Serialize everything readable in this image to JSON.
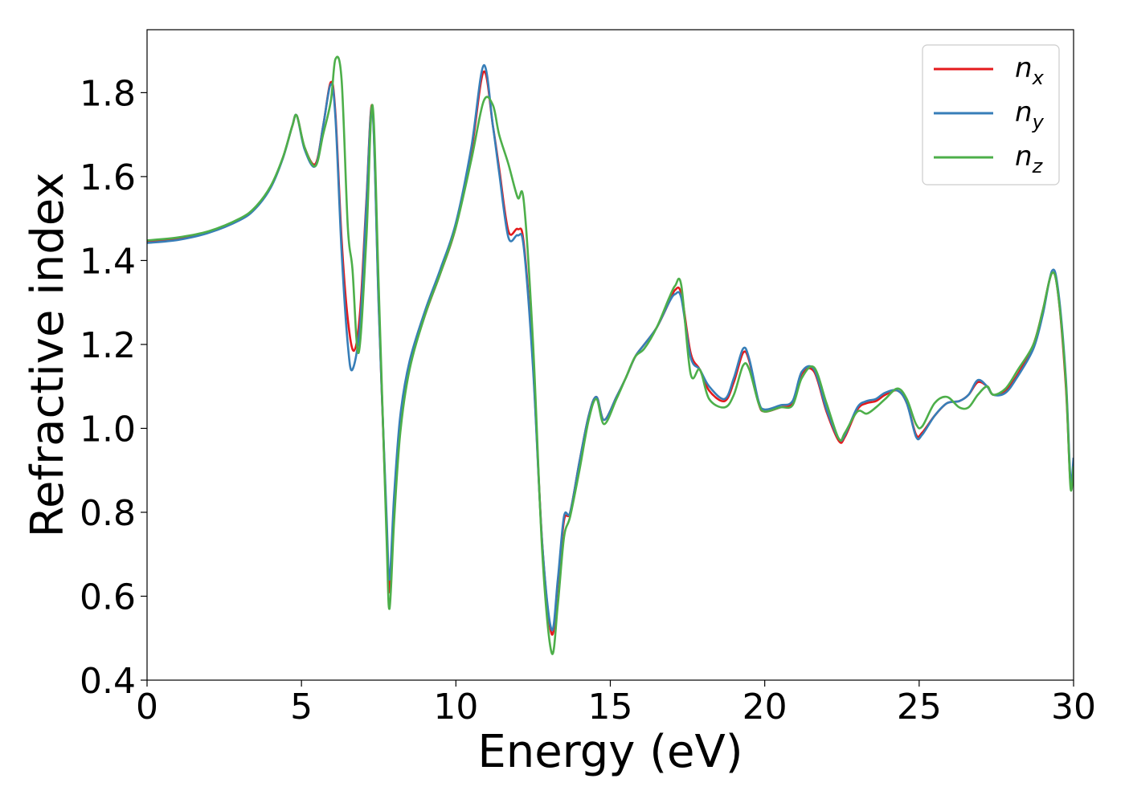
{
  "chart_data": {
    "type": "line",
    "title": "",
    "xlabel": "Energy (eV)",
    "ylabel": "Refractive index",
    "xlim": [
      0,
      30
    ],
    "ylim": [
      0.4,
      1.95
    ],
    "xticks": [
      0,
      5,
      10,
      15,
      20,
      25,
      30
    ],
    "xtick_labels": [
      "0",
      "5",
      "10",
      "15",
      "20",
      "25",
      "30"
    ],
    "yticks": [
      0.4,
      0.6,
      0.8,
      1.0,
      1.2,
      1.4,
      1.6,
      1.8
    ],
    "ytick_labels": [
      "0.4",
      "0.6",
      "0.8",
      "1.0",
      "1.2",
      "1.4",
      "1.6",
      "1.8"
    ],
    "grid": false,
    "legend_position": "top-right",
    "series": [
      {
        "name": "n",
        "subscript": "x",
        "color": "#e41a1c",
        "x": [
          0,
          1,
          2,
          3,
          3.5,
          4,
          4.4,
          4.7,
          4.85,
          5.1,
          5.45,
          5.7,
          5.95,
          6.1,
          6.3,
          6.5,
          6.7,
          6.9,
          7.1,
          7.3,
          7.5,
          7.75,
          7.85,
          8,
          8.2,
          8.5,
          9,
          9.5,
          10,
          10.5,
          10.9,
          11.2,
          11.4,
          11.7,
          12.0,
          12.2,
          12.5,
          12.8,
          13.1,
          13.3,
          13.5,
          13.7,
          14.0,
          14.3,
          14.55,
          14.8,
          15.2,
          15.5,
          15.8,
          16.1,
          16.5,
          16.9,
          17.1,
          17.3,
          17.6,
          17.9,
          18.2,
          18.7,
          19.0,
          19.3,
          19.5,
          19.8,
          20.0,
          20.5,
          20.9,
          21.2,
          21.6,
          22.0,
          22.4,
          22.6,
          23.0,
          23.3,
          23.6,
          23.9,
          24.3,
          24.6,
          24.9,
          25.1,
          25.5,
          25.9,
          26.3,
          26.6,
          26.9,
          27.2,
          27.4,
          27.8,
          28.2,
          28.7,
          29.0,
          29.3,
          29.5,
          29.75,
          29.9,
          30
        ],
        "y": [
          1.445,
          1.452,
          1.468,
          1.498,
          1.525,
          1.575,
          1.645,
          1.72,
          1.745,
          1.67,
          1.63,
          1.72,
          1.825,
          1.75,
          1.45,
          1.26,
          1.185,
          1.28,
          1.54,
          1.765,
          1.3,
          0.78,
          0.61,
          0.82,
          1.02,
          1.15,
          1.27,
          1.37,
          1.48,
          1.66,
          1.85,
          1.72,
          1.62,
          1.47,
          1.475,
          1.44,
          1.15,
          0.72,
          0.51,
          0.63,
          0.78,
          0.8,
          0.92,
          1.03,
          1.075,
          1.02,
          1.075,
          1.12,
          1.17,
          1.2,
          1.24,
          1.3,
          1.33,
          1.32,
          1.18,
          1.14,
          1.09,
          1.065,
          1.11,
          1.18,
          1.16,
          1.06,
          1.04,
          1.05,
          1.06,
          1.13,
          1.135,
          1.04,
          0.97,
          0.98,
          1.045,
          1.06,
          1.065,
          1.08,
          1.09,
          1.06,
          0.985,
          0.99,
          1.03,
          1.06,
          1.065,
          1.08,
          1.11,
          1.1,
          1.08,
          1.09,
          1.13,
          1.2,
          1.28,
          1.37,
          1.32,
          1.1,
          0.87,
          0.92
        ]
      },
      {
        "name": "n",
        "subscript": "y",
        "color": "#377eb8",
        "x": [
          0,
          1,
          2,
          3,
          3.5,
          4,
          4.4,
          4.7,
          4.85,
          5.1,
          5.45,
          5.7,
          5.95,
          6.1,
          6.3,
          6.5,
          6.65,
          6.9,
          7.1,
          7.3,
          7.5,
          7.75,
          7.85,
          8,
          8.2,
          8.5,
          9,
          9.5,
          10,
          10.5,
          10.9,
          11.2,
          11.4,
          11.7,
          12.0,
          12.2,
          12.5,
          12.8,
          13.1,
          13.3,
          13.5,
          13.7,
          14.0,
          14.3,
          14.55,
          14.8,
          15.2,
          15.5,
          15.8,
          16.1,
          16.5,
          16.9,
          17.1,
          17.3,
          17.6,
          17.9,
          18.2,
          18.7,
          19.0,
          19.3,
          19.5,
          19.8,
          20.0,
          20.5,
          20.9,
          21.2,
          21.6,
          22.0,
          22.4,
          22.6,
          23.0,
          23.3,
          23.6,
          23.9,
          24.3,
          24.6,
          24.9,
          25.1,
          25.5,
          25.9,
          26.3,
          26.6,
          26.9,
          27.2,
          27.4,
          27.8,
          28.2,
          28.7,
          29.0,
          29.3,
          29.5,
          29.75,
          29.9,
          30
        ],
        "y": [
          1.442,
          1.449,
          1.466,
          1.496,
          1.523,
          1.573,
          1.644,
          1.72,
          1.745,
          1.665,
          1.625,
          1.72,
          1.82,
          1.74,
          1.42,
          1.2,
          1.14,
          1.25,
          1.53,
          1.76,
          1.29,
          0.8,
          0.64,
          0.84,
          1.03,
          1.16,
          1.28,
          1.38,
          1.49,
          1.67,
          1.865,
          1.72,
          1.61,
          1.455,
          1.46,
          1.43,
          1.14,
          0.72,
          0.52,
          0.64,
          0.79,
          0.8,
          0.92,
          1.03,
          1.075,
          1.02,
          1.075,
          1.12,
          1.17,
          1.2,
          1.24,
          1.3,
          1.32,
          1.31,
          1.17,
          1.14,
          1.1,
          1.07,
          1.12,
          1.19,
          1.165,
          1.065,
          1.045,
          1.055,
          1.065,
          1.135,
          1.14,
          1.045,
          0.975,
          0.985,
          1.05,
          1.065,
          1.07,
          1.085,
          1.09,
          1.06,
          0.98,
          0.985,
          1.03,
          1.06,
          1.065,
          1.08,
          1.115,
          1.1,
          1.08,
          1.085,
          1.125,
          1.19,
          1.27,
          1.375,
          1.33,
          1.12,
          0.88,
          0.93
        ]
      },
      {
        "name": "n",
        "subscript": "z",
        "color": "#4daf4a",
        "x": [
          0,
          1,
          2,
          3,
          3.5,
          4,
          4.4,
          4.7,
          4.85,
          5.1,
          5.45,
          5.7,
          5.95,
          6.1,
          6.3,
          6.5,
          6.65,
          6.85,
          7.1,
          7.3,
          7.5,
          7.75,
          7.85,
          8,
          8.2,
          8.5,
          9,
          9.5,
          10,
          10.5,
          10.9,
          11.2,
          11.4,
          11.7,
          12.0,
          12.2,
          12.5,
          12.8,
          13.1,
          13.3,
          13.5,
          13.7,
          14.0,
          14.3,
          14.55,
          14.8,
          15.2,
          15.5,
          15.8,
          16.1,
          16.5,
          16.9,
          17.1,
          17.3,
          17.6,
          17.9,
          18.2,
          18.7,
          19.0,
          19.3,
          19.5,
          19.8,
          20.0,
          20.5,
          20.9,
          21.2,
          21.6,
          22.0,
          22.4,
          22.6,
          23.0,
          23.3,
          23.6,
          23.9,
          24.3,
          24.6,
          24.9,
          25.1,
          25.5,
          25.9,
          26.3,
          26.6,
          26.9,
          27.2,
          27.4,
          27.8,
          28.2,
          28.7,
          29.0,
          29.3,
          29.5,
          29.75,
          29.9,
          30
        ],
        "y": [
          1.448,
          1.455,
          1.47,
          1.5,
          1.527,
          1.577,
          1.646,
          1.72,
          1.745,
          1.67,
          1.625,
          1.7,
          1.78,
          1.88,
          1.83,
          1.48,
          1.38,
          1.18,
          1.45,
          1.77,
          1.34,
          0.75,
          0.57,
          0.78,
          0.99,
          1.14,
          1.27,
          1.37,
          1.48,
          1.64,
          1.78,
          1.77,
          1.7,
          1.63,
          1.55,
          1.54,
          1.2,
          0.7,
          0.465,
          0.58,
          0.74,
          0.79,
          0.9,
          1.02,
          1.07,
          1.01,
          1.07,
          1.12,
          1.17,
          1.19,
          1.24,
          1.31,
          1.34,
          1.34,
          1.13,
          1.14,
          1.07,
          1.05,
          1.08,
          1.15,
          1.14,
          1.06,
          1.04,
          1.05,
          1.055,
          1.12,
          1.145,
          1.06,
          0.975,
          0.99,
          1.04,
          1.035,
          1.05,
          1.07,
          1.095,
          1.07,
          1.01,
          1.005,
          1.06,
          1.075,
          1.05,
          1.05,
          1.08,
          1.1,
          1.08,
          1.095,
          1.14,
          1.2,
          1.28,
          1.37,
          1.32,
          1.11,
          0.86,
          0.91
        ]
      }
    ]
  }
}
